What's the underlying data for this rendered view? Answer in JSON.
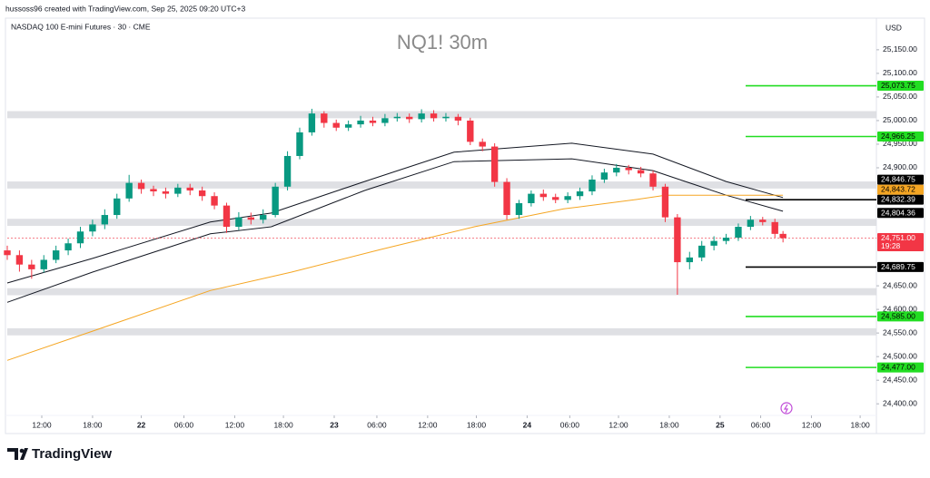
{
  "header": "hussoss96 created with TradingView.com, Sep 25, 2025 09:20 UTC+3",
  "brand": "TradingView",
  "chart_data": {
    "type": "candlestick",
    "title": "NQ1! 30m",
    "subtitle": "NASDAQ 100 E-mini Futures · 30 · CME",
    "currency": "USD",
    "up_color": "#089981",
    "down_color": "#f23645",
    "x": [
      0,
      3,
      6,
      9,
      12,
      15,
      18,
      21,
      24,
      27,
      30,
      33,
      36,
      39,
      42,
      45,
      48,
      51,
      54,
      57,
      60,
      63,
      66,
      69,
      72,
      75,
      78,
      81,
      84,
      87,
      90,
      93,
      96,
      99,
      102,
      105,
      108,
      111,
      114,
      117,
      120,
      123,
      126,
      129,
      132,
      135,
      138,
      141,
      144,
      147,
      150,
      153,
      156,
      159,
      162,
      165,
      168,
      171,
      174,
      177,
      180,
      183,
      186,
      189,
      191
    ],
    "open": [
      24725,
      24715,
      24695,
      24685,
      24705,
      24725,
      24740,
      24765,
      24780,
      24800,
      24835,
      24868,
      24855,
      24850,
      24845,
      24858,
      24852,
      24840,
      24820,
      24775,
      24795,
      24790,
      24800,
      24860,
      24925,
      24975,
      25015,
      24995,
      24985,
      24992,
      25000,
      24995,
      25005,
      25008,
      25003,
      25015,
      25005,
      25008,
      25000,
      24955,
      24945,
      24870,
      24800,
      24825,
      24845,
      24838,
      24832,
      24840,
      24850,
      24875,
      24890,
      24900,
      24895,
      24888,
      24860,
      24795,
      24700,
      24710,
      24735,
      24745,
      24752,
      24775,
      24790,
      24785,
      24760
    ],
    "high": [
      24735,
      24725,
      24705,
      24715,
      24735,
      24750,
      24775,
      24790,
      24812,
      24845,
      24885,
      24875,
      24862,
      24858,
      24866,
      24866,
      24860,
      24848,
      24826,
      24806,
      24805,
      24812,
      24868,
      24935,
      24985,
      25025,
      25020,
      25002,
      25000,
      25010,
      25008,
      25014,
      25016,
      25015,
      25024,
      25022,
      25016,
      25014,
      25006,
      24962,
      24952,
      24878,
      24832,
      24852,
      24854,
      24845,
      24848,
      24858,
      24884,
      24898,
      24908,
      24906,
      24902,
      24894,
      24866,
      24802,
      24722,
      24745,
      24755,
      24760,
      24782,
      24798,
      24796,
      24792,
      24766
    ],
    "low": [
      24705,
      24680,
      24665,
      24678,
      24698,
      24715,
      24730,
      24755,
      24770,
      24792,
      24828,
      24845,
      24840,
      24835,
      24838,
      24842,
      24830,
      24812,
      24762,
      24768,
      24780,
      24782,
      24795,
      24852,
      24918,
      24968,
      24985,
      24978,
      24978,
      24985,
      24988,
      24988,
      24998,
      24995,
      24996,
      24998,
      24998,
      24990,
      24948,
      24935,
      24860,
      24790,
      24792,
      24818,
      24830,
      24825,
      24825,
      24832,
      24842,
      24868,
      24882,
      24886,
      24880,
      24852,
      24785,
      24631,
      24685,
      24702,
      24725,
      24738,
      24745,
      24768,
      24778,
      24752,
      24742
    ],
    "close": [
      24715,
      24695,
      24685,
      24705,
      24725,
      24740,
      24765,
      24780,
      24800,
      24835,
      24868,
      24855,
      24850,
      24845,
      24858,
      24852,
      24840,
      24820,
      24775,
      24795,
      24790,
      24800,
      24860,
      24925,
      24975,
      25015,
      24995,
      24985,
      24992,
      25000,
      24995,
      25005,
      25008,
      25003,
      25015,
      25005,
      25008,
      25000,
      24955,
      24945,
      24870,
      24800,
      24825,
      24845,
      24838,
      24832,
      24840,
      24850,
      24875,
      24890,
      24900,
      24895,
      24888,
      24860,
      24795,
      24700,
      24710,
      24735,
      24745,
      24752,
      24775,
      24790,
      24785,
      24760,
      24751
    ],
    "xlim": [
      0,
      214
    ],
    "ylim": [
      24337,
      25217
    ],
    "yticks": [
      {
        "value": 25150,
        "label": "25,150.00"
      },
      {
        "value": 25100,
        "label": "25,100.00"
      },
      {
        "value": 25050,
        "label": "25,050.00"
      },
      {
        "value": 25000,
        "label": "25,000.00"
      },
      {
        "value": 24950,
        "label": "24,950.00"
      },
      {
        "value": 24900,
        "label": "24,900.00"
      },
      {
        "value": 24650,
        "label": "24,650.00"
      },
      {
        "value": 24600,
        "label": "24,600.00"
      },
      {
        "value": 24550,
        "label": "24,550.00"
      },
      {
        "value": 24500,
        "label": "24,500.00"
      },
      {
        "value": 24450,
        "label": "24,450.00"
      },
      {
        "value": 24400,
        "label": "24,400.00"
      }
    ],
    "xticks": [
      {
        "value": 8.5,
        "label": "12:00"
      },
      {
        "value": 21,
        "label": "18:00"
      },
      {
        "value": 33,
        "label": "22"
      },
      {
        "value": 43.5,
        "label": "06:00"
      },
      {
        "value": 56,
        "label": "12:00"
      },
      {
        "value": 68,
        "label": "18:00"
      },
      {
        "value": 80.5,
        "label": "23"
      },
      {
        "value": 91,
        "label": "06:00"
      },
      {
        "value": 103.5,
        "label": "12:00"
      },
      {
        "value": 115.5,
        "label": "18:00"
      },
      {
        "value": 128,
        "label": "24"
      },
      {
        "value": 138.5,
        "label": "06:00"
      },
      {
        "value": 150.5,
        "label": "12:00"
      },
      {
        "value": 163,
        "label": "18:00"
      },
      {
        "value": 175.5,
        "label": "25"
      },
      {
        "value": 185.5,
        "label": "06:00"
      },
      {
        "value": 198,
        "label": "12:00"
      },
      {
        "value": 210,
        "label": "18:00"
      }
    ],
    "overlays": [
      {
        "color": "#131722",
        "x": [
          0,
          21,
          50,
          65,
          88,
          110,
          139,
          159,
          177,
          191
        ],
        "values": [
          24656,
          24708,
          24785,
          24804,
          24871,
          24933,
          24952,
          24929,
          24871,
          24837
        ]
      },
      {
        "color": "#131722",
        "x": [
          0,
          21,
          50,
          65,
          88,
          110,
          139,
          159,
          177,
          191
        ],
        "values": [
          24615,
          24679,
          24760,
          24775,
          24852,
          24913,
          24919,
          24894,
          24842,
          24808
        ]
      },
      {
        "color": "#f5a623",
        "x": [
          0,
          21,
          50,
          70,
          92,
          115,
          137,
          155,
          162,
          191
        ],
        "values": [
          24492,
          24554,
          24640,
          24679,
          24727,
          24775,
          24813,
          24833,
          24842,
          24842
        ]
      }
    ],
    "zones": [
      {
        "from": 25005,
        "to": 25020
      },
      {
        "from": 24856,
        "to": 24871
      },
      {
        "from": 24777,
        "to": 24792
      },
      {
        "from": 24630,
        "to": 24645
      },
      {
        "from": 24545,
        "to": 24560
      }
    ],
    "levels": [
      {
        "value": 25073.75,
        "label": "25,073.75",
        "color": "#22dd22"
      },
      {
        "value": 24966.25,
        "label": "24,966.25",
        "color": "#22dd22"
      },
      {
        "value": 24832.39,
        "label": "24,832.39",
        "color": "#000000"
      },
      {
        "value": 24689.75,
        "label": "24,689.75",
        "color": "#000000"
      },
      {
        "value": 24585,
        "label": "24,585.00",
        "color": "#22dd22"
      },
      {
        "value": 24477,
        "label": "24,477.00",
        "color": "#22dd22"
      }
    ],
    "price_labels": [
      {
        "value": 24846.75,
        "label": "24,846.75",
        "color": "#000000"
      },
      {
        "value": 24843.72,
        "label": "24,843.72",
        "color": "#f5a623"
      },
      {
        "value": 24804.36,
        "label": "24,804.36",
        "color": "#000000"
      }
    ],
    "last": {
      "value": 24751,
      "label": "24,751.00",
      "countdown": "19:28",
      "color": "#f23645"
    }
  }
}
